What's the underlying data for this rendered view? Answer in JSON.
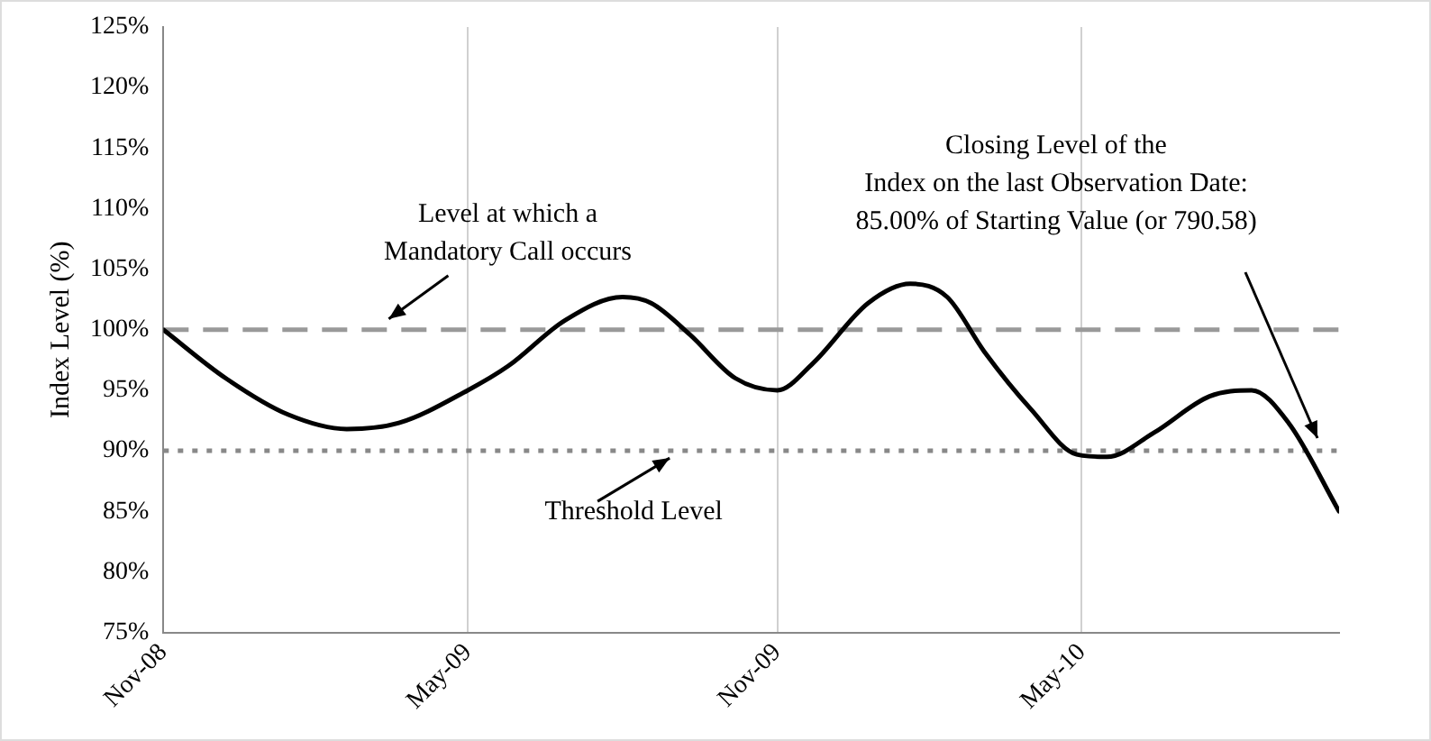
{
  "chart_data": {
    "type": "line",
    "ylabel": "Index Level (%)",
    "x": [
      "2008-11-01",
      "2008-12-08",
      "2009-01-14",
      "2009-02-18",
      "2009-03-21",
      "2009-05-01",
      "2009-05-25",
      "2009-06-28",
      "2009-08-01",
      "2009-08-18",
      "2009-09-10",
      "2009-10-07",
      "2009-11-01",
      "2009-11-22",
      "2009-12-25",
      "2010-01-19",
      "2010-02-10",
      "2010-03-04",
      "2010-04-01",
      "2010-04-28",
      "2010-05-16",
      "2010-06-13",
      "2010-07-16",
      "2010-08-10",
      "2010-09-01",
      "2010-10-01"
    ],
    "series": [
      {
        "color": "#000000",
        "values": [
          100,
          96,
          93,
          91.8,
          92.3,
          95,
          97,
          100.8,
          102.7,
          102.2,
          99.6,
          96,
          95,
          97.2,
          102.2,
          103.8,
          102.7,
          98.2,
          93.4,
          89.7,
          89.5,
          91.5,
          94.5,
          95,
          92.3,
          85
        ]
      }
    ],
    "xlim": [
      "2008-11-01",
      "2010-10-01"
    ],
    "xticks": [
      {
        "value": "2008-11-01",
        "label": "Nov-08"
      },
      {
        "value": "2009-05-01",
        "label": "May-09"
      },
      {
        "value": "2009-11-01",
        "label": "Nov-09"
      },
      {
        "value": "2010-05-01",
        "label": "May-10"
      }
    ],
    "ylim": [
      75,
      125
    ],
    "yticks": [
      {
        "value": 75,
        "label": "75%"
      },
      {
        "value": 80,
        "label": "80%"
      },
      {
        "value": 85,
        "label": "85%"
      },
      {
        "value": 90,
        "label": "90%"
      },
      {
        "value": 95,
        "label": "95%"
      },
      {
        "value": 100,
        "label": "100%"
      },
      {
        "value": 105,
        "label": "105%"
      },
      {
        "value": 110,
        "label": "110%"
      },
      {
        "value": 115,
        "label": "115%"
      },
      {
        "value": 120,
        "label": "120%"
      },
      {
        "value": 125,
        "label": "125%"
      }
    ],
    "ref_lines": [
      {
        "axis": "y",
        "value": 100,
        "color": "#999999",
        "line_style": "dashed"
      },
      {
        "axis": "y",
        "value": 90,
        "color": "#888888",
        "line_style": "dotted"
      }
    ],
    "annotations": [
      {
        "text": "Level at which a\nMandatory Call occurs",
        "x": "2009-03-15",
        "y": 100
      },
      {
        "text": "Threshold Level",
        "x": "2009-08-29",
        "y": 90
      },
      "Closing Level of the\nIndex on the last Observation Date:\n85.00% of Starting Value (or 790.58)"
    ],
    "grid": "x",
    "legend": false,
    "marker": "none",
    "line_style": "solid"
  }
}
